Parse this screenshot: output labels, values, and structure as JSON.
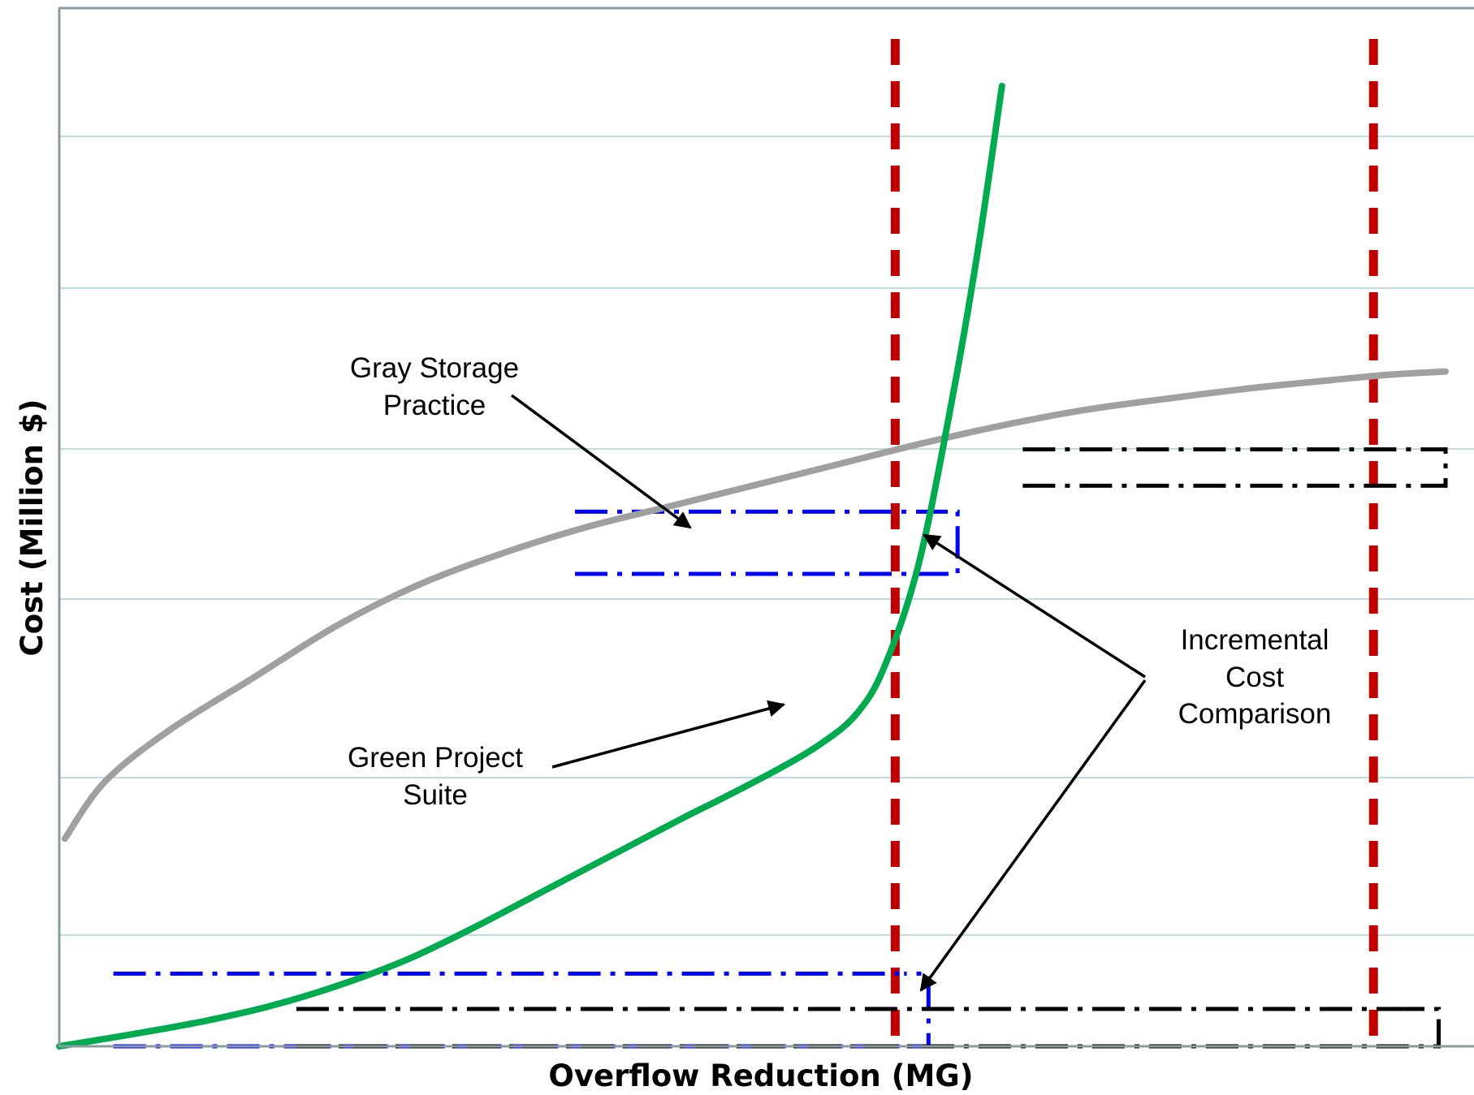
{
  "chart_data": {
    "type": "line",
    "title": "",
    "xlabel": "Overflow Reduction (MG)",
    "ylabel": "Cost (Million $)",
    "xlim": [
      0,
      100
    ],
    "ylim": [
      0,
      100
    ],
    "grid": "horizontal",
    "tick_labels_shown": false,
    "series": [
      {
        "name": "Gray Storage Practice",
        "color": "#a0a0a0",
        "x": [
          0.4,
          3.3,
          8,
          14,
          20,
          26,
          32,
          38,
          44,
          50,
          56,
          62,
          68,
          74,
          80,
          86,
          92,
          96,
          100
        ],
        "y": [
          20,
          25.5,
          30.5,
          35.5,
          40.5,
          44.5,
          47.5,
          50,
          52,
          54,
          56,
          58,
          59.8,
          61.3,
          62.4,
          63.4,
          64.2,
          64.7,
          65
        ]
      },
      {
        "name": "Green Project Suite",
        "color": "#00aa4f",
        "x": [
          0,
          5,
          10,
          15,
          20,
          25,
          30,
          35,
          40,
          45,
          48,
          52,
          55,
          57.5,
          59.5,
          62,
          64.5,
          66.3,
          68
        ],
        "y": [
          0,
          1.1,
          2.3,
          3.8,
          5.8,
          8.3,
          11.5,
          15,
          18.5,
          22,
          24,
          26.8,
          29.2,
          32,
          36.5,
          46.5,
          63,
          77,
          92.5
        ]
      }
    ],
    "reference_lines": [
      {
        "x": 60.3,
        "style": "dashed",
        "color": "#c00000"
      },
      {
        "x": 94.8,
        "style": "dashed",
        "color": "#c00000"
      }
    ],
    "annotations": [
      {
        "text": [
          "Gray Storage",
          "Practice"
        ],
        "points_to": "Gray Storage Practice"
      },
      {
        "text": [
          "Green Project",
          "Suite"
        ],
        "points_to": "Green Project Suite"
      },
      {
        "text": [
          "Incremental",
          "Cost",
          "Comparison"
        ],
        "points_to": "incremental cost brackets"
      }
    ],
    "incremental_brackets": [
      {
        "color": "#0000ff",
        "x": [
          37.2,
          64.8
        ],
        "y": [
          45.5,
          51.5
        ]
      },
      {
        "color": "#0000ff",
        "x": [
          3.9,
          62.7
        ],
        "y": [
          0,
          7
        ]
      },
      {
        "color": "#000000",
        "x": [
          17.1,
          99.5
        ],
        "y": [
          0,
          3.6
        ]
      },
      {
        "color": "#000000",
        "x": [
          69.5,
          100
        ],
        "y": [
          54,
          57.5
        ]
      }
    ]
  }
}
